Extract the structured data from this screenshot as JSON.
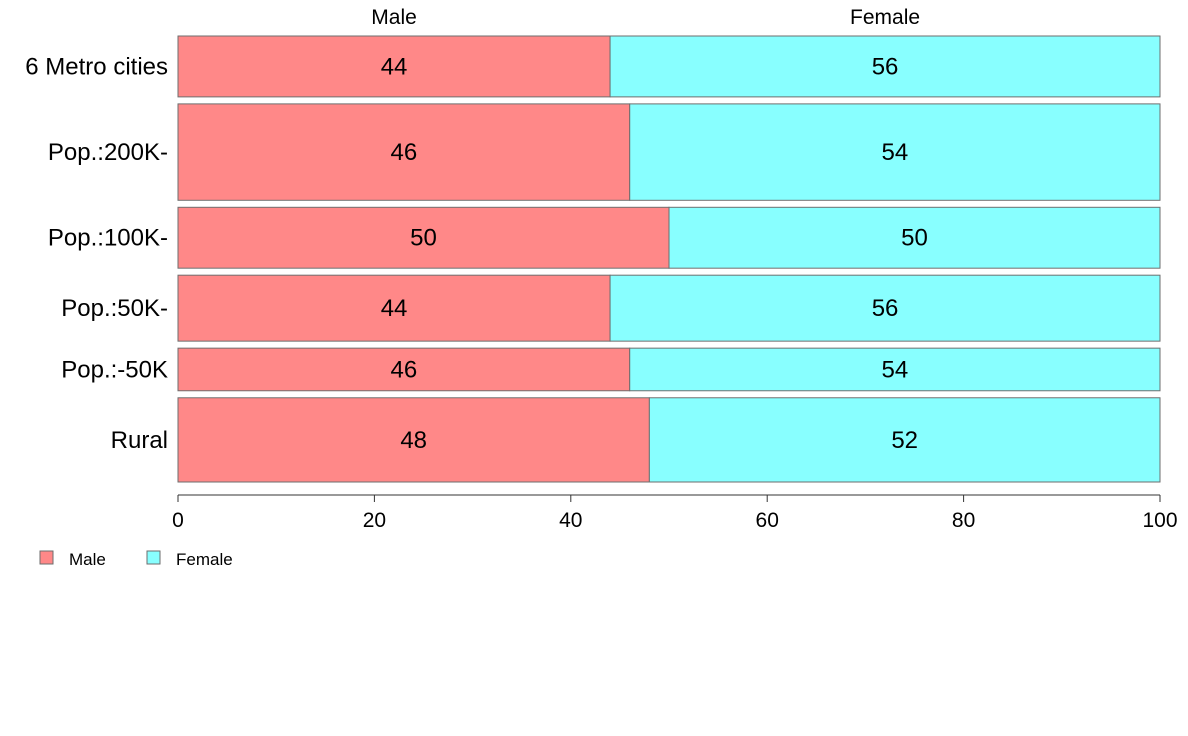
{
  "chart_data": {
    "type": "bar",
    "orientation": "horizontal",
    "stacked": true,
    "categories": [
      "6 Metro cities",
      "Pop.:200K-",
      "Pop.:100K-",
      "Pop.:50K-",
      "Pop.:-50K",
      "Rural"
    ],
    "category_weights": [
      60,
      95,
      60,
      65,
      42,
      83
    ],
    "series": [
      {
        "name": "Male",
        "values": [
          44,
          46,
          50,
          44,
          46,
          48
        ],
        "color": "#ff8888"
      },
      {
        "name": "Female",
        "values": [
          56,
          54,
          50,
          56,
          54,
          52
        ],
        "color": "#88ffff"
      }
    ],
    "top_labels": [
      "Male",
      "Female"
    ],
    "xlim": [
      0,
      100
    ],
    "xticks": [
      0,
      20,
      40,
      60,
      80,
      100
    ],
    "grid": false,
    "legend": {
      "position": "bottom-left",
      "entries": [
        "Male",
        "Female"
      ]
    },
    "title": "",
    "xlabel": "",
    "ylabel": ""
  }
}
